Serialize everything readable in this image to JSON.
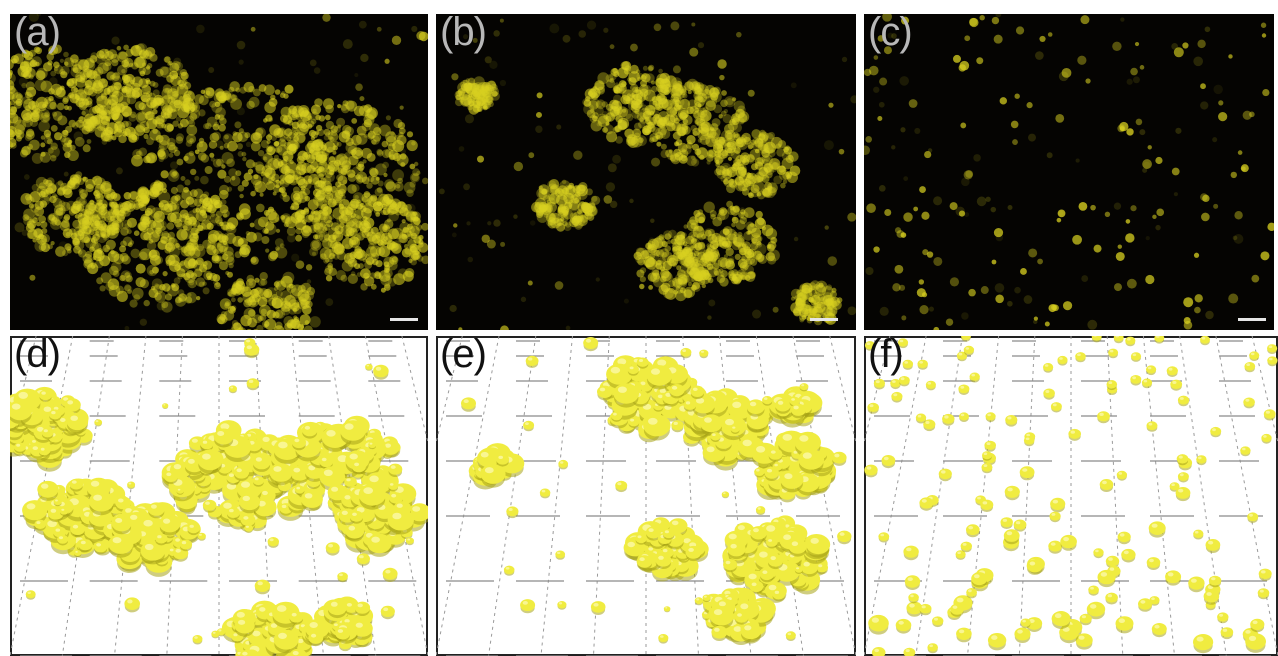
{
  "figure": {
    "background": "#ffffff",
    "panels": [
      {
        "id": "a",
        "label": "(a)",
        "kind": "fluorescence-micrograph",
        "color": "#d8d020",
        "pattern": "dense-aggregate",
        "scale_bar": true
      },
      {
        "id": "b",
        "label": "(b)",
        "kind": "fluorescence-micrograph",
        "color": "#d8d020",
        "pattern": "ring-aggregate",
        "scale_bar": true
      },
      {
        "id": "c",
        "label": "(c)",
        "kind": "fluorescence-micrograph",
        "color": "#d8d020",
        "pattern": "sparse-dots",
        "scale_bar": true
      },
      {
        "id": "d",
        "label": "(d)",
        "kind": "3d-surface-render",
        "color": "#f0ec40",
        "pattern": "dense-aggregate"
      },
      {
        "id": "e",
        "label": "(e)",
        "kind": "3d-surface-render",
        "color": "#f0ec40",
        "pattern": "ring-aggregate"
      },
      {
        "id": "f",
        "label": "(f)",
        "kind": "3d-surface-render",
        "color": "#f0ec40",
        "pattern": "sparse-dots"
      }
    ]
  }
}
